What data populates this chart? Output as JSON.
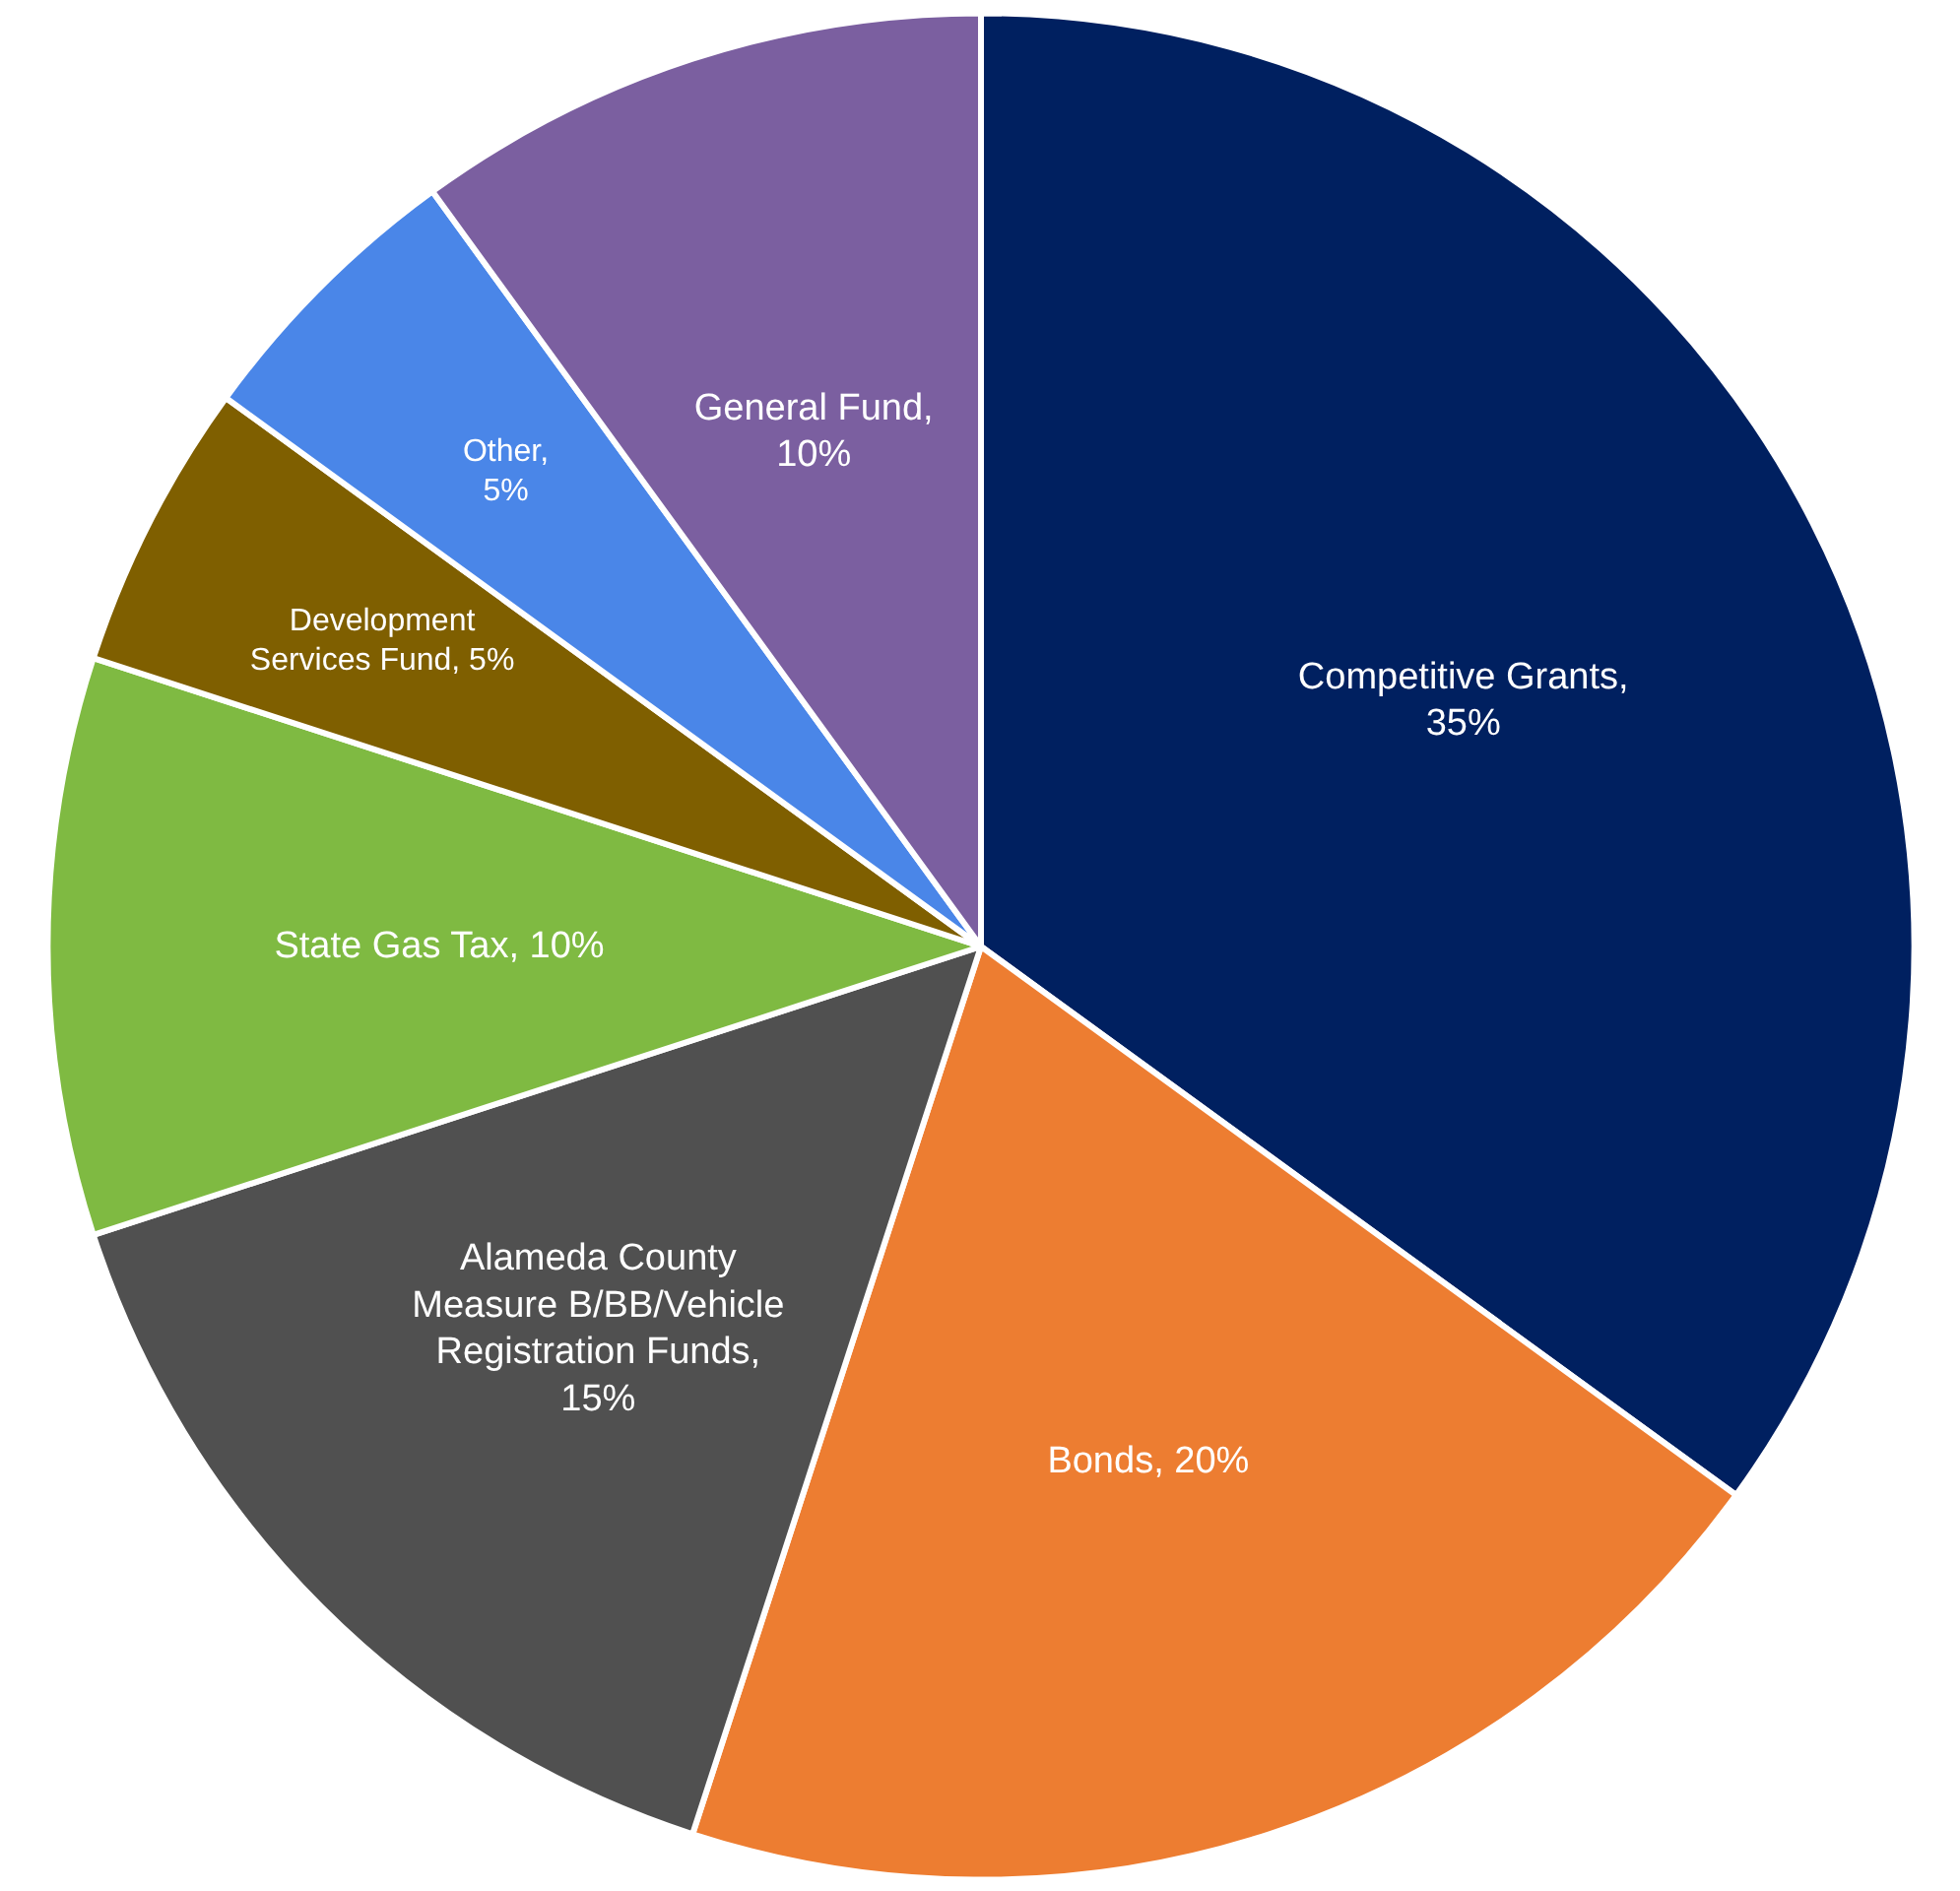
{
  "chart_data": {
    "type": "pie",
    "categories": [
      "Competitive Grants",
      "Bonds",
      "Alameda County Measure B/BB/Vehicle Registration Funds",
      "State Gas Tax",
      "Development Services Fund",
      "Other",
      "General Fund"
    ],
    "values": [
      35,
      20,
      15,
      10,
      5,
      5,
      10
    ],
    "colors": [
      "#002060",
      "#ed7d31",
      "#505050",
      "#7fba42",
      "#7f5f00",
      "#4a86e8",
      "#7b5fa0"
    ],
    "value_labels": [
      ",\n35%",
      ", 20%",
      ",\n15%",
      ", 10%",
      ", 5%",
      ",\n5%",
      ",\n10%"
    ],
    "legend": false
  }
}
